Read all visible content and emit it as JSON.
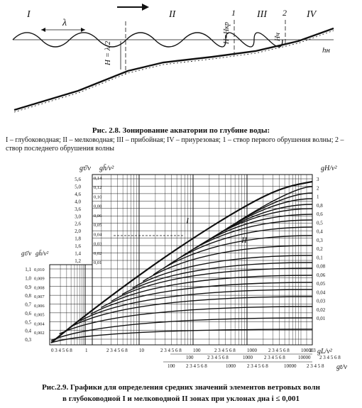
{
  "figure_1": {
    "zone_labels": [
      "I",
      "II",
      "III",
      "IV"
    ],
    "wavelength_label": "λ",
    "line_markers": [
      "1",
      "2"
    ],
    "depth_label": "H = λ/2",
    "breaking_label_1": "H=Hкр",
    "breaking_label_2": "Hч",
    "shore_label": "hн",
    "caption_title": "Рис. 2.8. Зонирование акватории по глубине воды:",
    "caption_text": "I – глубоководная; II – мелководная; III – прибойная; IV – приурезовая; 1 – створ первого обрушения волны; 2 – створ последнего обрушения волны"
  },
  "figure_2": {
    "caption_line_1": "Рис.2.9. Графики для определения средних значений элементов ветровых волн",
    "caption_line_2": "в глубоководной I и мелководной II зонах при уклонах дна i ≤ 0,001",
    "curve_labels": [
      "I",
      "II"
    ],
    "axis_left_outer_title": "gτ̄/v",
    "axis_left_inner_title": "gh̄/v²",
    "axis_right_title": "gH/v²",
    "axis_x_main_title": "gL/v²",
    "axis_x_second_title": "gt/v",
    "left_outer_ticks_upper": [
      "5,6",
      "5,0",
      "4,6",
      "4,0",
      "3,6",
      "3,0",
      "2,6",
      "2,0",
      "1,8",
      "1,6",
      "1,4",
      "1,2"
    ],
    "left_inner_ticks_upper": [
      "0,14",
      "0,12",
      "0,10",
      "0,08",
      "0,06",
      "0,05",
      "0,04",
      "0,03",
      "0,02",
      "0,01"
    ],
    "left_outer_ticks_lower": [
      "1,1",
      "1,0",
      "0,9",
      "0,8",
      "0,7",
      "0,6",
      "0,5",
      "0,4",
      "0,3"
    ],
    "left_inner_ticks_lower": [
      "0,010",
      "0,009",
      "0,008",
      "0,007",
      "0,006",
      "0,005",
      "0,004",
      "0,002"
    ],
    "right_ticks": [
      "3",
      "2",
      "1",
      "0,8",
      "0,6",
      "0,5",
      "0,4",
      "0,3",
      "0,2",
      "0,1",
      "0,08",
      "0,06",
      "0,05",
      "0,04",
      "0,03",
      "0,02",
      "0,01"
    ],
    "x_main_ticks": [
      "0 3 4 5 6 8",
      "1",
      "2 3 4 5 6 8",
      "10",
      "2 3 4 5 6 8",
      "100",
      "2 3 4 5 6 8",
      "1000",
      "2 3 4 5 6 8",
      "10000",
      "2 3"
    ],
    "x_second_ticks": [
      "100",
      "2 3 4 5 6 8",
      "1000",
      "2 3 4 5 6 8",
      "10000",
      "2 3 4 5 6 8"
    ],
    "x_third_ticks": [
      "100",
      "2 3 4 5 6 8",
      "1000",
      "2 3 4 5 6 8",
      "10000",
      "2 3 4 5 8"
    ]
  }
}
